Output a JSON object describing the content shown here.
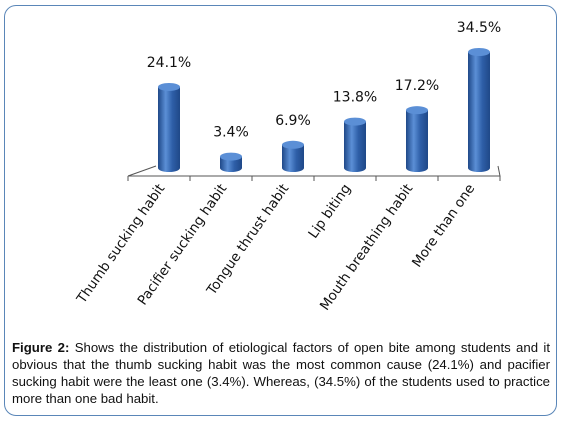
{
  "chart_data": {
    "type": "bar",
    "categories": [
      "Thumb sucking habit",
      "Pacifier sucking habit",
      "Tongue thrust habit",
      "Lip biting",
      "Mouth breathing habit",
      "More than one"
    ],
    "values": [
      24.1,
      3.4,
      6.9,
      13.8,
      17.2,
      34.5
    ],
    "data_labels": [
      "24.1%",
      "3.4%",
      "6.9%",
      "13.8%",
      "17.2%",
      "34.5%"
    ],
    "ylim": [
      0,
      34.5
    ],
    "grid": false,
    "legend": "none",
    "bar_color": "#2e5fa8",
    "bar_highlight": "#5b8fd6",
    "bar_shadow": "#1f4888"
  },
  "caption": {
    "label": "Figure 2:",
    "text": " Shows the distribution of etiological factors of open bite among students and it obvious that the   thumb sucking  habit was the most common cause (24.1%) and pacifier sucking habit were the least one (3.4%). Whereas, (34.5%) of the students used to practice more than one bad habit."
  },
  "colors": {
    "frame_border": "#5a86b8",
    "axis": "#555555"
  }
}
